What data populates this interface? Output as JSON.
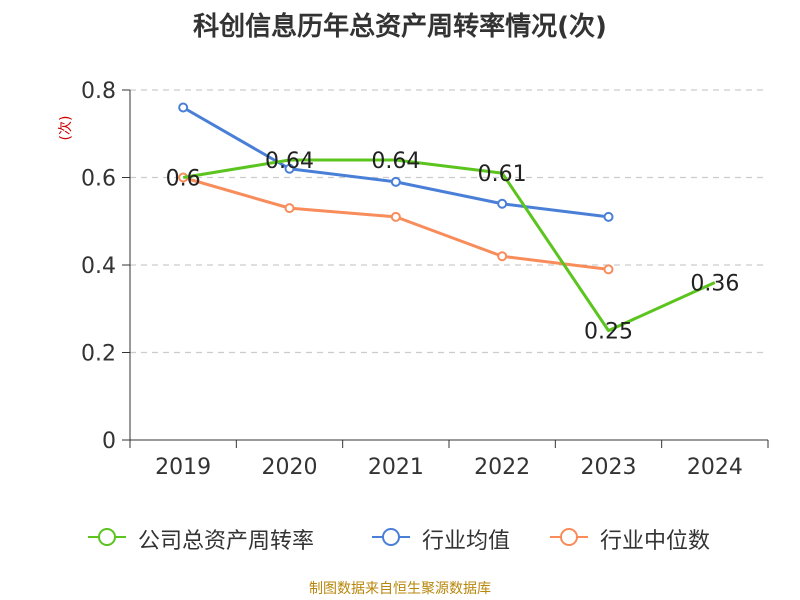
{
  "chart_data": {
    "type": "line",
    "title": "科创信息历年总资产周转率情况(次)",
    "ylabel": "(次)",
    "xlabel": "",
    "categories": [
      "2019",
      "2020",
      "2021",
      "2022",
      "2023",
      "2024"
    ],
    "ylim": [
      0,
      0.8
    ],
    "yticks": [
      "0",
      "0.2",
      "0.4",
      "0.6",
      "0.8"
    ],
    "grid": "horizontal-dashed",
    "legend_position": "bottom",
    "series": [
      {
        "name": "公司总资产周转率",
        "color": "#5cc41e",
        "values": [
          0.6,
          0.64,
          0.64,
          0.61,
          0.25,
          0.36
        ],
        "value_labels": [
          "0.6",
          "0.64",
          "0.64",
          "0.61",
          "0.25",
          "0.36"
        ]
      },
      {
        "name": "行业均值",
        "color": "#4a7fd8",
        "values": [
          0.76,
          0.62,
          0.59,
          0.54,
          0.51,
          null
        ]
      },
      {
        "name": "行业中位数",
        "color": "#f88c5a",
        "values": [
          0.6,
          0.53,
          0.51,
          0.42,
          0.39,
          null
        ]
      }
    ]
  },
  "footer": {
    "source": "制图数据来自恒生聚源数据库"
  }
}
